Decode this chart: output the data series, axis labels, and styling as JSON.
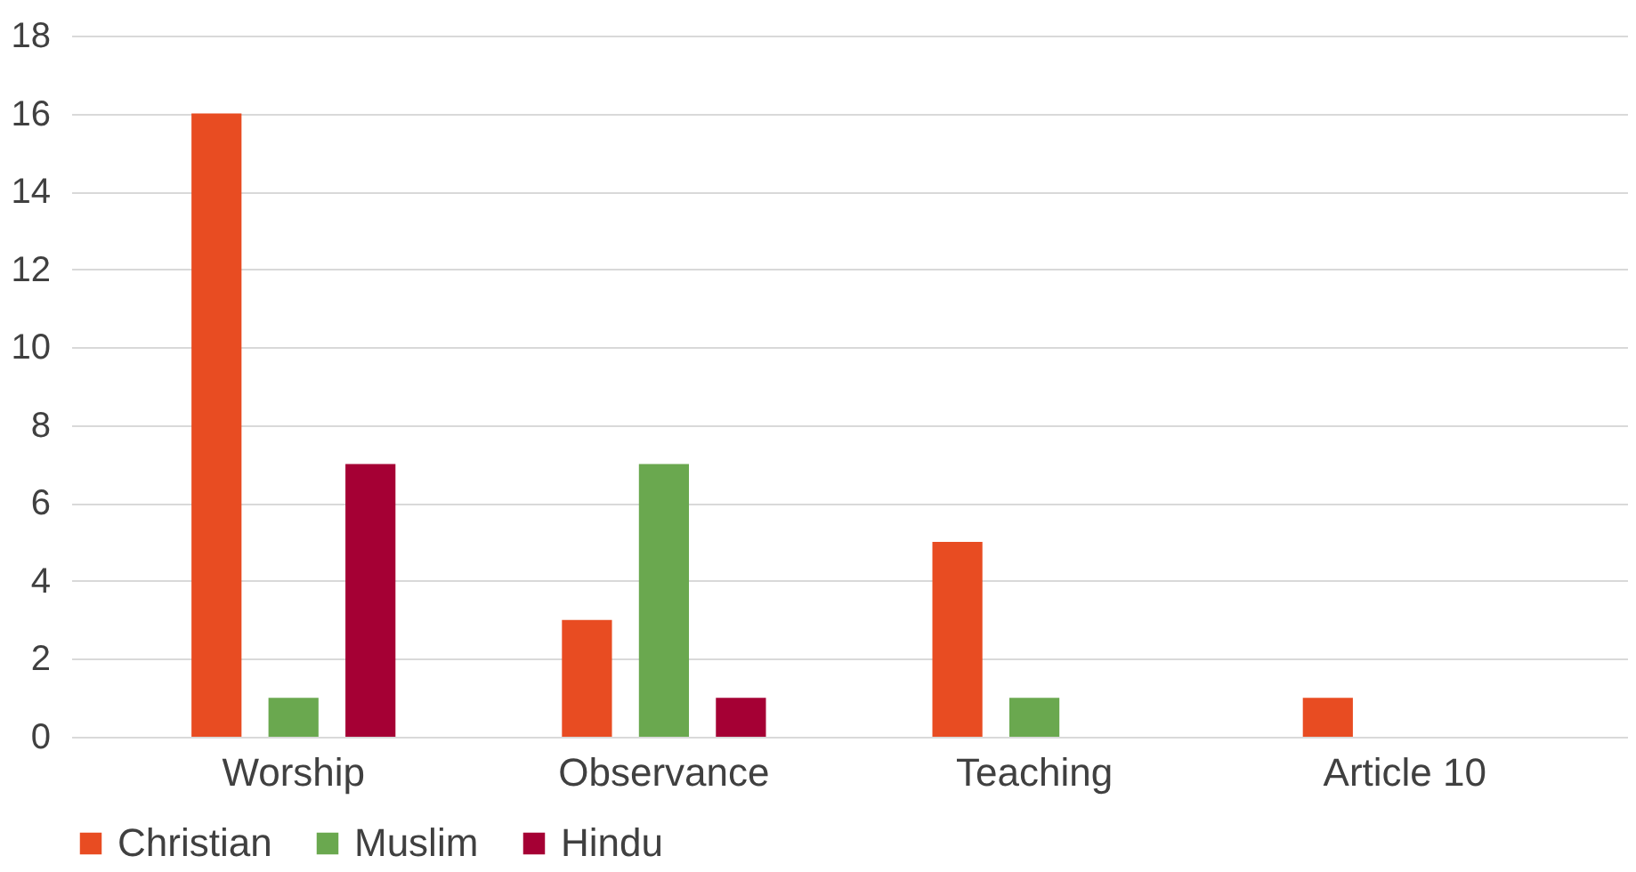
{
  "chart_data": {
    "type": "bar",
    "categories": [
      "Worship",
      "Observance",
      "Teaching",
      "Article 10"
    ],
    "series": [
      {
        "name": "Christian",
        "color": "#e84c22",
        "values": [
          16,
          3,
          5,
          1
        ]
      },
      {
        "name": "Muslim",
        "color": "#6aa84f",
        "values": [
          1,
          7,
          1,
          0
        ]
      },
      {
        "name": "Hindu",
        "color": "#a50034",
        "values": [
          7,
          1,
          0,
          0
        ]
      }
    ],
    "ylim": [
      0,
      18
    ],
    "yticks": [
      0,
      2,
      4,
      6,
      8,
      10,
      12,
      14,
      16,
      18
    ],
    "grid": "y",
    "legend": "bottom"
  }
}
